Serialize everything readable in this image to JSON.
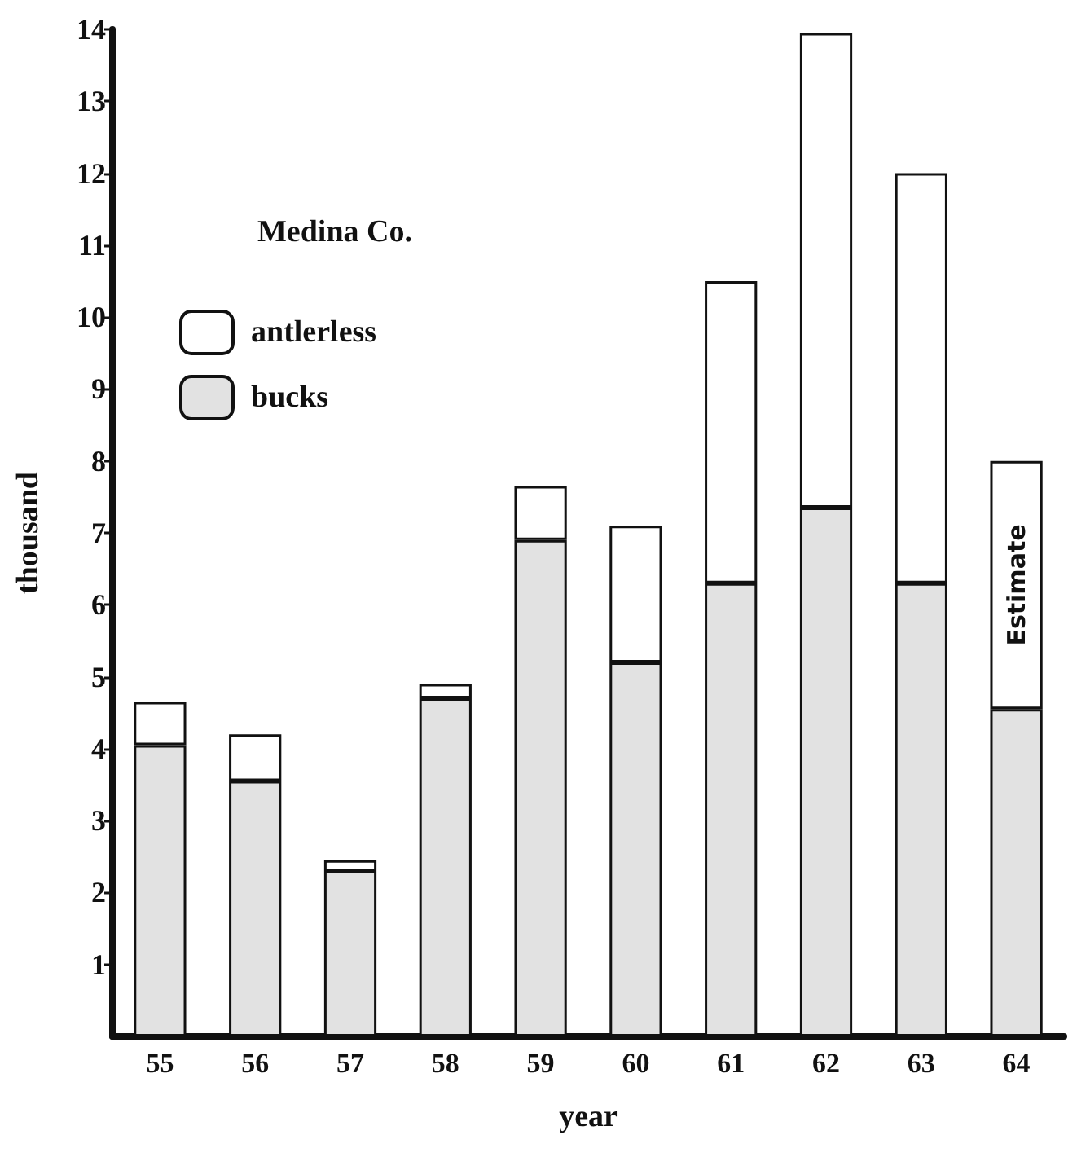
{
  "chart_data": {
    "type": "bar",
    "title": "Medina Co.",
    "xlabel": "year",
    "ylabel": "thousand",
    "categories": [
      "55",
      "56",
      "57",
      "58",
      "59",
      "60",
      "61",
      "62",
      "63",
      "64"
    ],
    "series": [
      {
        "name": "bucks",
        "color": "#e2e2e2",
        "values": [
          4.05,
          3.55,
          2.3,
          4.7,
          6.9,
          5.2,
          6.3,
          7.35,
          6.3,
          4.55
        ]
      },
      {
        "name": "antlerless",
        "color": "#ffffff",
        "values": [
          0.6,
          0.65,
          0.15,
          0.2,
          0.75,
          1.9,
          4.2,
          6.6,
          5.7,
          3.45
        ]
      }
    ],
    "stacked": true,
    "ylim": [
      0,
      14
    ],
    "yticks": [
      1,
      2,
      3,
      4,
      5,
      6,
      7,
      8,
      9,
      10,
      11,
      12,
      13,
      14
    ],
    "annotations": [
      "Estimate"
    ],
    "legend": "top left",
    "grid": false
  }
}
